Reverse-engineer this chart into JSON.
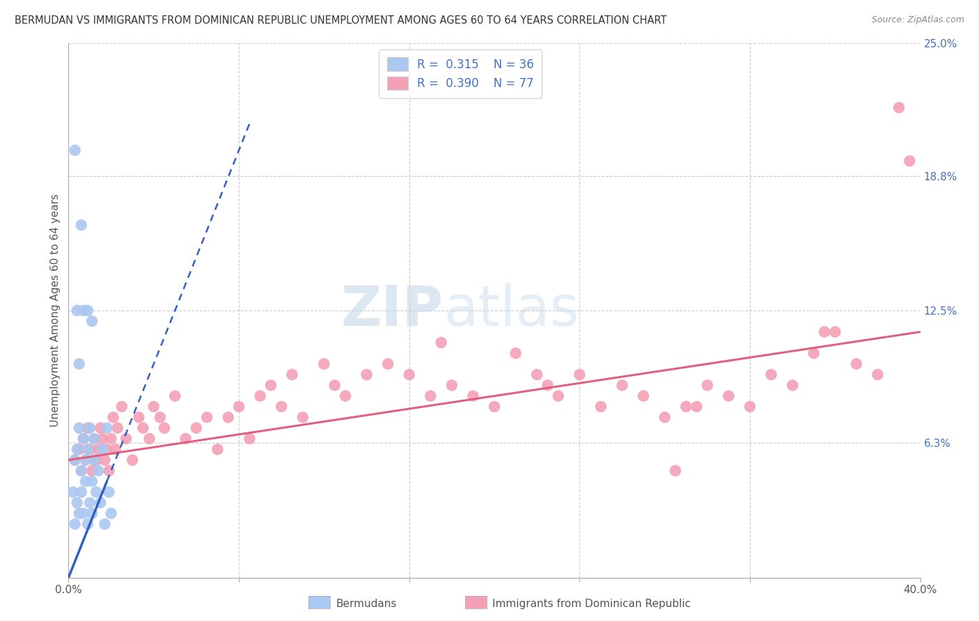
{
  "title": "BERMUDAN VS IMMIGRANTS FROM DOMINICAN REPUBLIC UNEMPLOYMENT AMONG AGES 60 TO 64 YEARS CORRELATION CHART",
  "source": "Source: ZipAtlas.com",
  "ylabel": "Unemployment Among Ages 60 to 64 years",
  "xlim": [
    0.0,
    0.4
  ],
  "ylim": [
    0.0,
    0.25
  ],
  "grid_color": "#cccccc",
  "background_color": "#ffffff",
  "bermudans_color": "#aac8f0",
  "dominican_color": "#f4a0b5",
  "bermudans_line_color": "#3060c0",
  "dominican_line_color": "#e06080",
  "legend_R_bermudans": "0.315",
  "legend_N_bermudans": "36",
  "legend_R_dominican": "0.390",
  "legend_N_dominican": "77",
  "berm_scatter_x": [
    0.002,
    0.003,
    0.003,
    0.004,
    0.004,
    0.005,
    0.005,
    0.006,
    0.006,
    0.007,
    0.007,
    0.008,
    0.008,
    0.009,
    0.009,
    0.01,
    0.01,
    0.011,
    0.011,
    0.012,
    0.012,
    0.013,
    0.014,
    0.015,
    0.016,
    0.017,
    0.018,
    0.019,
    0.003,
    0.006,
    0.004,
    0.007,
    0.005,
    0.009,
    0.011,
    0.02
  ],
  "berm_scatter_y": [
    0.04,
    0.025,
    0.055,
    0.035,
    0.06,
    0.03,
    0.07,
    0.04,
    0.05,
    0.03,
    0.065,
    0.045,
    0.055,
    0.025,
    0.06,
    0.035,
    0.07,
    0.045,
    0.03,
    0.055,
    0.065,
    0.04,
    0.05,
    0.035,
    0.06,
    0.025,
    0.07,
    0.04,
    0.2,
    0.165,
    0.125,
    0.125,
    0.1,
    0.125,
    0.12,
    0.03
  ],
  "dom_scatter_x": [
    0.003,
    0.005,
    0.006,
    0.007,
    0.008,
    0.009,
    0.01,
    0.011,
    0.012,
    0.013,
    0.014,
    0.015,
    0.016,
    0.017,
    0.018,
    0.019,
    0.02,
    0.021,
    0.022,
    0.023,
    0.025,
    0.027,
    0.03,
    0.033,
    0.035,
    0.038,
    0.04,
    0.043,
    0.045,
    0.05,
    0.055,
    0.06,
    0.065,
    0.07,
    0.075,
    0.08,
    0.085,
    0.09,
    0.095,
    0.1,
    0.105,
    0.11,
    0.12,
    0.125,
    0.13,
    0.14,
    0.15,
    0.16,
    0.17,
    0.175,
    0.18,
    0.19,
    0.2,
    0.21,
    0.22,
    0.225,
    0.23,
    0.24,
    0.25,
    0.26,
    0.27,
    0.28,
    0.29,
    0.3,
    0.31,
    0.32,
    0.33,
    0.34,
    0.35,
    0.36,
    0.37,
    0.38,
    0.285,
    0.295,
    0.355,
    0.39,
    0.395
  ],
  "dom_scatter_y": [
    0.055,
    0.06,
    0.05,
    0.065,
    0.055,
    0.07,
    0.06,
    0.05,
    0.065,
    0.055,
    0.06,
    0.07,
    0.065,
    0.055,
    0.06,
    0.05,
    0.065,
    0.075,
    0.06,
    0.07,
    0.08,
    0.065,
    0.055,
    0.075,
    0.07,
    0.065,
    0.08,
    0.075,
    0.07,
    0.085,
    0.065,
    0.07,
    0.075,
    0.06,
    0.075,
    0.08,
    0.065,
    0.085,
    0.09,
    0.08,
    0.095,
    0.075,
    0.1,
    0.09,
    0.085,
    0.095,
    0.1,
    0.095,
    0.085,
    0.11,
    0.09,
    0.085,
    0.08,
    0.105,
    0.095,
    0.09,
    0.085,
    0.095,
    0.08,
    0.09,
    0.085,
    0.075,
    0.08,
    0.09,
    0.085,
    0.08,
    0.095,
    0.09,
    0.105,
    0.115,
    0.1,
    0.095,
    0.05,
    0.08,
    0.115,
    0.22,
    0.195
  ],
  "berm_line_x0": 0.0,
  "berm_line_y0": 0.0,
  "berm_line_x1": 0.1,
  "berm_line_y1": 0.25,
  "dom_line_x0": 0.0,
  "dom_line_y0": 0.055,
  "dom_line_x1": 0.4,
  "dom_line_y1": 0.115
}
